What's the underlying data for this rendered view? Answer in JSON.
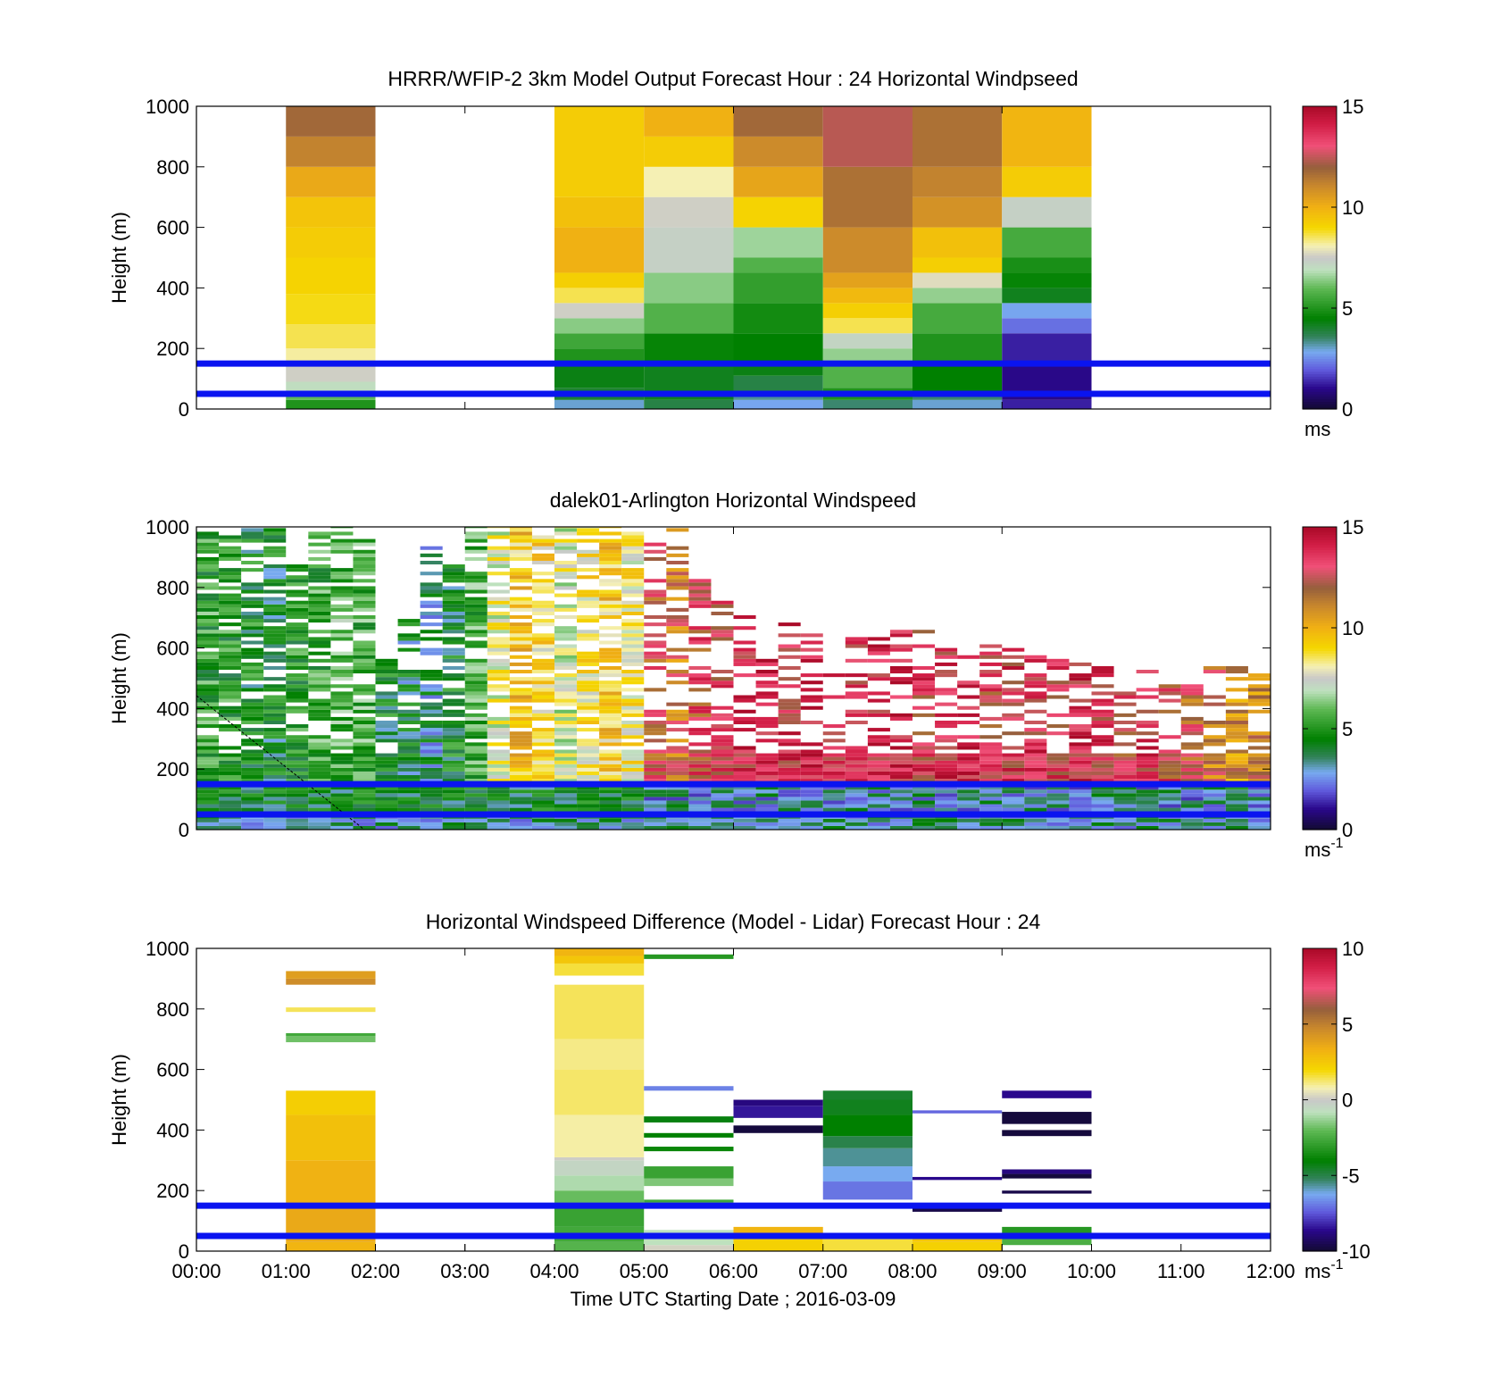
{
  "chart_data": [
    {
      "type": "heatmap",
      "title": "HRRR/WFIP-2 3km Model Output   Forecast Hour : 24 Horizontal Windpseed",
      "ylabel": "Height (m)",
      "xlim": [
        0,
        12
      ],
      "ylim": [
        0,
        1000
      ],
      "yticks": [
        0,
        200,
        400,
        600,
        800,
        1000
      ],
      "clim": [
        0,
        15
      ],
      "colorbar_ticks": [
        0,
        5,
        10,
        15
      ],
      "colorbar_unit": "ms",
      "colorbar_sup": "",
      "reference_lines": [
        50,
        150
      ],
      "columns": [
        {
          "t0": 1,
          "t1": 2,
          "cells": [
            [
              0,
              30,
              5
            ],
            [
              30,
              60,
              6
            ],
            [
              60,
              90,
              7
            ],
            [
              90,
              150,
              7.6
            ],
            [
              150,
              200,
              8.2
            ],
            [
              200,
              280,
              8.6
            ],
            [
              280,
              380,
              8.9
            ],
            [
              380,
              500,
              9.1
            ],
            [
              500,
              600,
              9.3
            ],
            [
              600,
              700,
              9.5
            ],
            [
              700,
              800,
              10.2
            ],
            [
              800,
              900,
              11.2
            ],
            [
              900,
              1000,
              11.8
            ]
          ]
        },
        {
          "t0": 4,
          "t1": 5,
          "cells": [
            [
              0,
              30,
              3
            ],
            [
              30,
              70,
              4
            ],
            [
              70,
              150,
              4.3
            ],
            [
              150,
              200,
              5
            ],
            [
              200,
              250,
              5.5
            ],
            [
              250,
              300,
              6.4
            ],
            [
              300,
              350,
              7.6
            ],
            [
              350,
              400,
              8.6
            ],
            [
              400,
              450,
              9.2
            ],
            [
              450,
              600,
              10
            ],
            [
              600,
              700,
              9.6
            ],
            [
              700,
              1000,
              9.3
            ]
          ]
        },
        {
          "t0": 5,
          "t1": 6,
          "cells": [
            [
              0,
              30,
              3.8
            ],
            [
              30,
              150,
              4.2
            ],
            [
              150,
              250,
              4.6
            ],
            [
              250,
              350,
              5.8
            ],
            [
              350,
              450,
              6.4
            ],
            [
              450,
              600,
              7.3
            ],
            [
              600,
              700,
              7.6
            ],
            [
              700,
              800,
              8.1
            ],
            [
              800,
              900,
              9.3
            ],
            [
              900,
              1000,
              10
            ]
          ]
        },
        {
          "t0": 6,
          "t1": 7,
          "cells": [
            [
              0,
              30,
              2.8
            ],
            [
              30,
              60,
              3.3
            ],
            [
              60,
              110,
              3.8
            ],
            [
              110,
              150,
              4.3
            ],
            [
              150,
              250,
              4.5
            ],
            [
              250,
              350,
              4.8
            ],
            [
              350,
              450,
              5.3
            ],
            [
              450,
              500,
              5.8
            ],
            [
              500,
              600,
              6.6
            ],
            [
              600,
              700,
              9.1
            ],
            [
              700,
              800,
              10.3
            ],
            [
              800,
              900,
              11
            ],
            [
              900,
              1000,
              11.8
            ]
          ]
        },
        {
          "t0": 7,
          "t1": 8,
          "cells": [
            [
              0,
              30,
              3.5
            ],
            [
              30,
              70,
              5
            ],
            [
              70,
              150,
              5.8
            ],
            [
              150,
              200,
              6.5
            ],
            [
              200,
              250,
              7.2
            ],
            [
              250,
              300,
              8.6
            ],
            [
              300,
              350,
              9.2
            ],
            [
              350,
              400,
              9.8
            ],
            [
              400,
              450,
              10.4
            ],
            [
              450,
              600,
              11
            ],
            [
              600,
              800,
              11.6
            ],
            [
              800,
              1000,
              12.4
            ]
          ]
        },
        {
          "t0": 8,
          "t1": 9,
          "cells": [
            [
              0,
              30,
              3
            ],
            [
              30,
              60,
              3.5
            ],
            [
              60,
              150,
              4.5
            ],
            [
              150,
              250,
              5
            ],
            [
              250,
              350,
              5.6
            ],
            [
              350,
              400,
              6.5
            ],
            [
              400,
              450,
              7.8
            ],
            [
              450,
              500,
              9.2
            ],
            [
              500,
              600,
              9.6
            ],
            [
              600,
              700,
              10.8
            ],
            [
              700,
              800,
              11.2
            ],
            [
              800,
              1000,
              11.6
            ]
          ]
        },
        {
          "t0": 9,
          "t1": 10,
          "cells": [
            [
              0,
              30,
              1.3
            ],
            [
              30,
              150,
              1
            ],
            [
              150,
              250,
              1.3
            ],
            [
              250,
              300,
              2.2
            ],
            [
              300,
              350,
              2.8
            ],
            [
              350,
              400,
              4.2
            ],
            [
              400,
              450,
              4.6
            ],
            [
              450,
              500,
              4.9
            ],
            [
              500,
              600,
              5.6
            ],
            [
              600,
              700,
              7.3
            ],
            [
              700,
              800,
              9.3
            ],
            [
              800,
              1000,
              9.9
            ]
          ]
        }
      ]
    },
    {
      "type": "heatmap",
      "title": "dalek01-Arlington  Horizontal Windspeed",
      "ylabel": "Height (m)",
      "xlim": [
        0,
        12
      ],
      "ylim": [
        0,
        1000
      ],
      "yticks": [
        0,
        200,
        400,
        600,
        800,
        1000
      ],
      "clim": [
        0,
        15
      ],
      "colorbar_ticks": [
        0,
        5,
        10,
        15
      ],
      "colorbar_unit": "ms",
      "colorbar_sup": "-1",
      "reference_lines": [
        50,
        150
      ],
      "profile_bins_minutes": 15,
      "profiles": [
        {
          "top": 980,
          "base": 5.2
        },
        {
          "top": 970,
          "base": 5.0
        },
        {
          "top": 990,
          "base": 4.6
        },
        {
          "top": 1000,
          "base": 4.3
        },
        {
          "top": 880,
          "base": 4.8
        },
        {
          "top": 1000,
          "base": 5.4
        },
        {
          "top": 1000,
          "base": 5.8
        },
        {
          "top": 960,
          "base": 5.6
        },
        {
          "top": 560,
          "base": 4.4
        },
        {
          "top": 690,
          "base": 4.0
        },
        {
          "top": 930,
          "base": 3.6
        },
        {
          "top": 870,
          "base": 4.4
        },
        {
          "top": 1000,
          "base": 5.6
        },
        {
          "top": 1000,
          "base": 7.8
        },
        {
          "top": 1000,
          "base": 9.4
        },
        {
          "top": 980,
          "base": 8.6
        },
        {
          "top": 1000,
          "base": 7.6
        },
        {
          "top": 1000,
          "base": 8.4
        },
        {
          "top": 1000,
          "base": 9.2
        },
        {
          "top": 980,
          "base": 8.2
        },
        {
          "top": 980,
          "base": 12.4
        },
        {
          "top": 990,
          "base": 11.6
        },
        {
          "top": 860,
          "base": 12.8
        },
        {
          "top": 760,
          "base": 13.4
        },
        {
          "top": 700,
          "base": 13.6
        },
        {
          "top": 660,
          "base": 13.9
        },
        {
          "top": 690,
          "base": 13.6
        },
        {
          "top": 640,
          "base": 13.8
        },
        {
          "top": 560,
          "base": 13.4
        },
        {
          "top": 640,
          "base": 13.1
        },
        {
          "top": 660,
          "base": 13.7
        },
        {
          "top": 660,
          "base": 13.9
        },
        {
          "top": 680,
          "base": 13.2
        },
        {
          "top": 600,
          "base": 13.5
        },
        {
          "top": 580,
          "base": 13.8
        },
        {
          "top": 620,
          "base": 13.0
        },
        {
          "top": 600,
          "base": 13.4
        },
        {
          "top": 620,
          "base": 13.6
        },
        {
          "top": 610,
          "base": 13.1
        },
        {
          "top": 560,
          "base": 13.8
        },
        {
          "top": 550,
          "base": 13.4
        },
        {
          "top": 540,
          "base": 13.0
        },
        {
          "top": 520,
          "base": 13.6
        },
        {
          "top": 490,
          "base": 12.8
        },
        {
          "top": 470,
          "base": 12.2
        },
        {
          "top": 550,
          "base": 11.6
        },
        {
          "top": 540,
          "base": 10.8
        },
        {
          "top": 510,
          "base": 11.2
        }
      ]
    },
    {
      "type": "heatmap",
      "title": "Horizontal Windspeed Difference (Model - Lidar) Forecast Hour : 24",
      "ylabel": "Height (m)",
      "xlabel": "Time UTC  Starting Date ; 2016-03-09",
      "xlim": [
        0,
        12
      ],
      "ylim": [
        0,
        1000
      ],
      "xticks": [
        "00:00",
        "01:00",
        "02:00",
        "03:00",
        "04:00",
        "05:00",
        "06:00",
        "07:00",
        "08:00",
        "09:00",
        "10:00",
        "11:00",
        "12:00"
      ],
      "yticks": [
        0,
        200,
        400,
        600,
        800,
        1000
      ],
      "clim": [
        -10,
        10
      ],
      "colorbar_ticks": [
        -10,
        -5,
        0,
        5,
        10
      ],
      "colorbar_unit": "ms",
      "colorbar_sup": "-1",
      "reference_lines": [
        50,
        150
      ],
      "columns": [
        {
          "t0": 1,
          "t1": 2,
          "cells": [
            [
              0,
              30,
              3.2
            ],
            [
              30,
              150,
              3.6
            ],
            [
              150,
              300,
              3.3
            ],
            [
              300,
              450,
              2.8
            ],
            [
              450,
              530,
              2.3
            ],
            [
              690,
              710,
              -1.8
            ],
            [
              710,
              720,
              -2.6
            ],
            [
              790,
              805,
              1.4
            ],
            [
              880,
              900,
              4.6
            ],
            [
              900,
              925,
              4.0
            ]
          ]
        },
        {
          "t0": 4,
          "t1": 5,
          "cells": [
            [
              0,
              30,
              -2.2
            ],
            [
              30,
              80,
              -2.6
            ],
            [
              80,
              150,
              -2.8
            ],
            [
              150,
              200,
              -1.9
            ],
            [
              200,
              250,
              -1.0
            ],
            [
              250,
              300,
              -0.4
            ],
            [
              300,
              310,
              0.1
            ],
            [
              310,
              450,
              0.9
            ],
            [
              450,
              600,
              1.3
            ],
            [
              600,
              700,
              1.1
            ],
            [
              700,
              880,
              1.4
            ],
            [
              910,
              950,
              1.6
            ],
            [
              950,
              975,
              2.6
            ],
            [
              975,
              1000,
              3.2
            ]
          ]
        },
        {
          "t0": 5,
          "t1": 6,
          "cells": [
            [
              0,
              20,
              0.2
            ],
            [
              20,
              70,
              -0.8
            ],
            [
              160,
              170,
              -2.6
            ],
            [
              215,
              240,
              -1.6
            ],
            [
              240,
              280,
              -2.8
            ],
            [
              330,
              345,
              -3.8
            ],
            [
              375,
              390,
              -4.0
            ],
            [
              425,
              445,
              -4.2
            ],
            [
              530,
              545,
              -6.8
            ],
            [
              965,
              980,
              -3.2
            ]
          ]
        },
        {
          "t0": 6,
          "t1": 7,
          "cells": [
            [
              0,
              40,
              2.2
            ],
            [
              40,
              80,
              3.2
            ],
            [
              390,
              415,
              -9.8
            ],
            [
              440,
              480,
              -8.4
            ],
            [
              480,
              500,
              -8.8
            ]
          ]
        },
        {
          "t0": 7,
          "t1": 8,
          "cells": [
            [
              0,
              40,
              1.6
            ],
            [
              40,
              60,
              3.0
            ],
            [
              170,
              230,
              -7.0
            ],
            [
              230,
              280,
              -6.2
            ],
            [
              280,
              340,
              -5.6
            ],
            [
              340,
              380,
              -5.0
            ],
            [
              380,
              450,
              -4.0
            ],
            [
              450,
              500,
              -4.4
            ],
            [
              500,
              530,
              -4.6
            ]
          ]
        },
        {
          "t0": 8,
          "t1": 9,
          "cells": [
            [
              0,
              30,
              2.2
            ],
            [
              30,
              60,
              2.6
            ],
            [
              130,
              150,
              -9.6
            ],
            [
              235,
              245,
              -8.6
            ],
            [
              455,
              465,
              -7.2
            ]
          ]
        },
        {
          "t0": 9,
          "t1": 10,
          "cells": [
            [
              20,
              60,
              -2.4
            ],
            [
              60,
              80,
              -3.2
            ],
            [
              190,
              200,
              -9.6
            ],
            [
              240,
              255,
              -9.8
            ],
            [
              255,
              270,
              -8.8
            ],
            [
              380,
              400,
              -9.8
            ],
            [
              420,
              460,
              -9.8
            ],
            [
              505,
              530,
              -8.6
            ]
          ]
        }
      ]
    }
  ]
}
